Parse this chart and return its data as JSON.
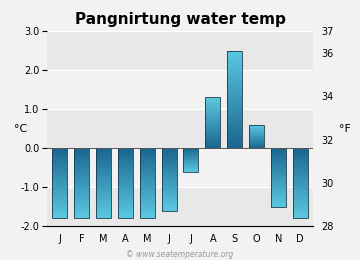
{
  "title": "Pangnirtung water temp",
  "months": [
    "J",
    "F",
    "M",
    "A",
    "M",
    "J",
    "J",
    "A",
    "S",
    "O",
    "N",
    "D"
  ],
  "values_c": [
    -1.8,
    -1.8,
    -1.8,
    -1.8,
    -1.8,
    -1.6,
    -0.6,
    1.3,
    2.5,
    0.6,
    -1.5,
    -1.8
  ],
  "ylim_c": [
    -2.0,
    3.0
  ],
  "yticks_c": [
    -2.0,
    -1.0,
    0.0,
    1.0,
    2.0,
    3.0
  ],
  "ylim_f": [
    28,
    37
  ],
  "yticks_f": [
    28,
    30,
    32,
    34,
    36,
    37
  ],
  "ylabel_left": "°C",
  "ylabel_right": "°F",
  "watermark": "© www.seatemperature.org",
  "background_color": "#f2f2f2",
  "band_colors": [
    "#e8e8e8",
    "#f2f2f2"
  ],
  "bar_color_dark": "#1a6690",
  "bar_color_light": "#5ac8e0",
  "grid_color": "#ffffff",
  "title_fontsize": 11,
  "tick_fontsize": 7,
  "label_fontsize": 8,
  "bar_width": 0.68
}
